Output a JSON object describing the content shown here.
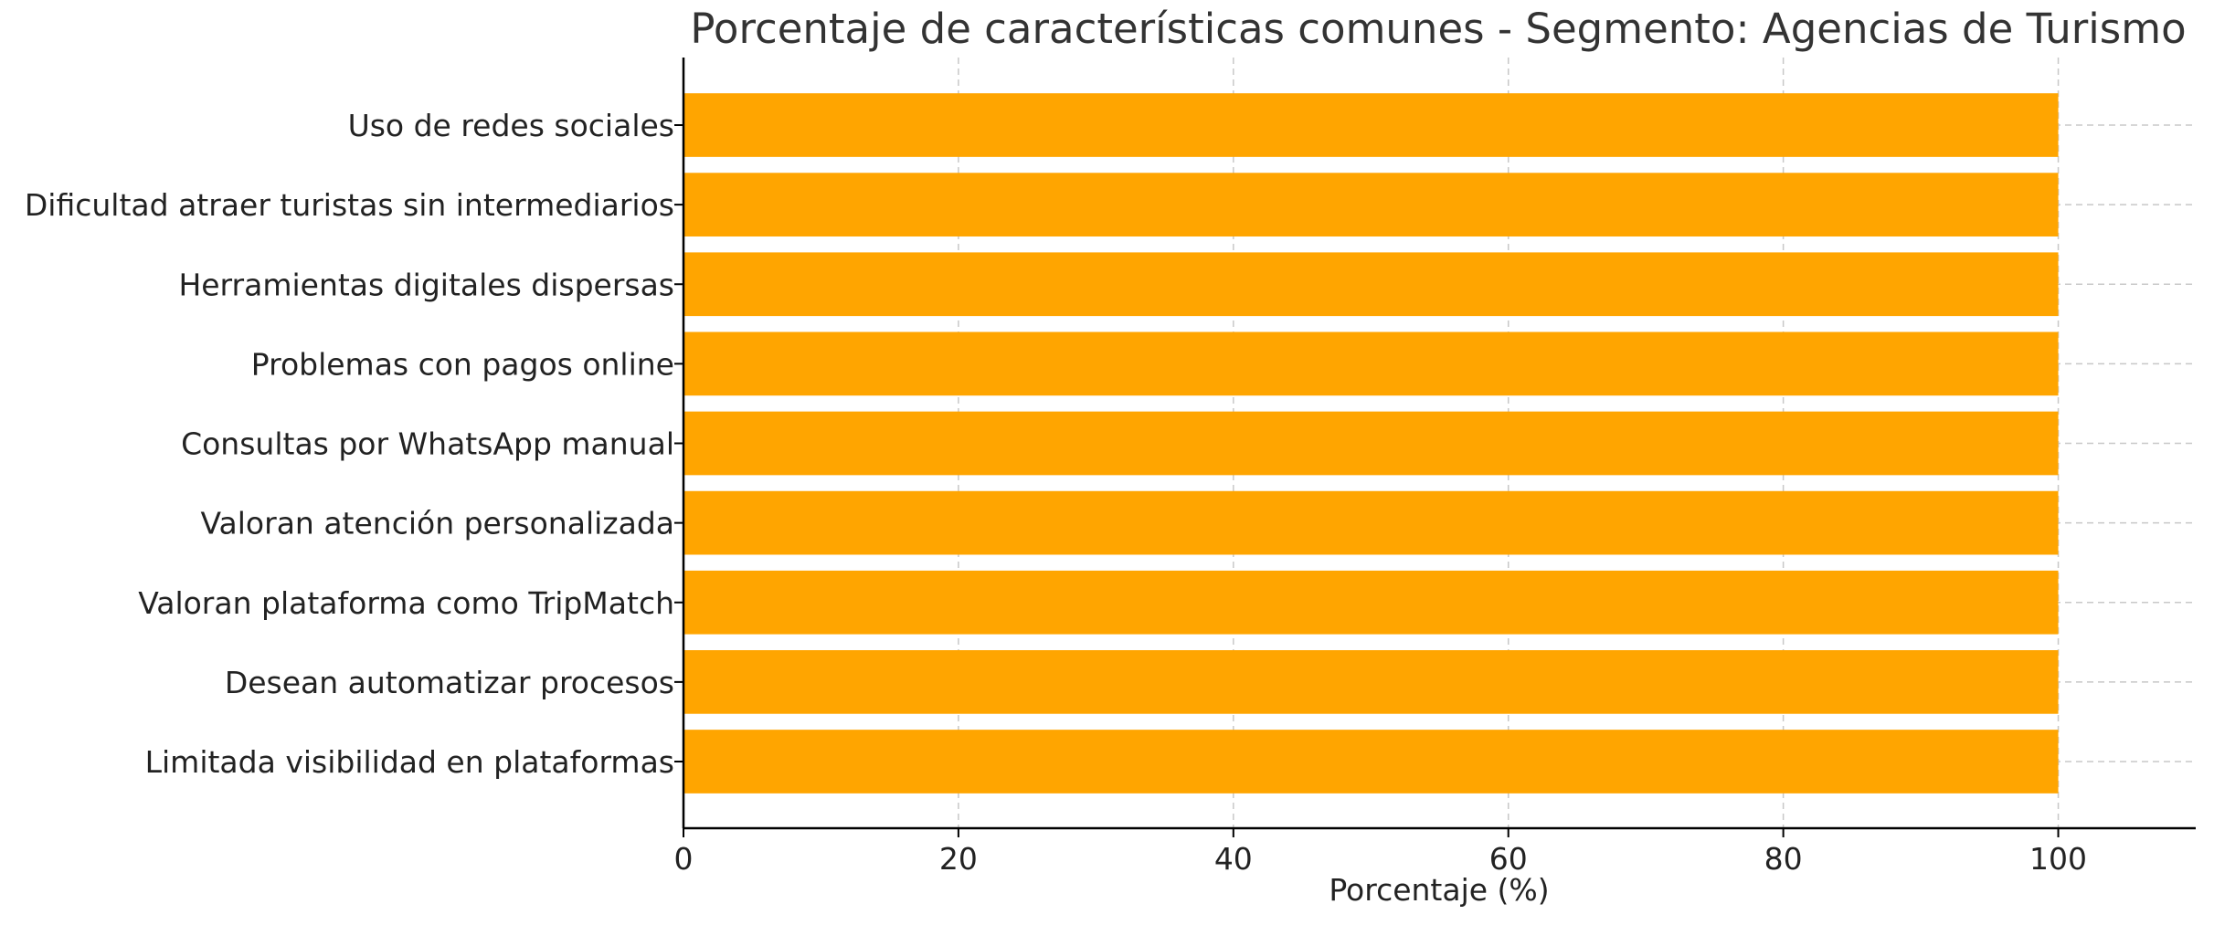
{
  "chart_data": {
    "type": "bar",
    "orientation": "horizontal",
    "title": "Porcentaje de características comunes - Segmento: Agencias de Turismo",
    "xlabel": "Porcentaje (%)",
    "ylabel": "",
    "categories": [
      "Uso de redes sociales",
      "Dificultad atraer turistas sin intermediarios",
      "Herramientas digitales dispersas",
      "Problemas con pagos online",
      "Consultas por WhatsApp manual",
      "Valoran atención personalizada",
      "Valoran plataforma como TripMatch",
      "Desean automatizar procesos",
      "Limitada visibilidad en plataformas"
    ],
    "values": [
      100,
      100,
      100,
      100,
      100,
      100,
      100,
      100,
      100
    ],
    "xlim": [
      0,
      110
    ],
    "xticks": [
      "0",
      "20",
      "40",
      "60",
      "80",
      "100"
    ],
    "grid": true,
    "bar_color": "#FFA500"
  }
}
